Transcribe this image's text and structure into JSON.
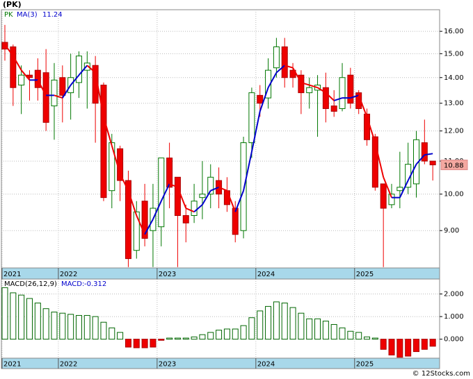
{
  "chart_data": [
    {
      "type": "candlestick",
      "title": "(PK)",
      "symbol": "PK",
      "log_scale": true,
      "grid": true,
      "categories": [
        "2021",
        null,
        null,
        null,
        null,
        null,
        null,
        "2022",
        null,
        null,
        null,
        null,
        null,
        null,
        null,
        null,
        null,
        null,
        null,
        "2023",
        null,
        null,
        null,
        null,
        null,
        null,
        null,
        null,
        null,
        null,
        null,
        "2024",
        null,
        null,
        null,
        null,
        null,
        null,
        null,
        null,
        null,
        null,
        null,
        "2025",
        null,
        null,
        null,
        null,
        null,
        null,
        null,
        null,
        null
      ],
      "open": [
        15.5,
        15.3,
        13.7,
        14.1,
        14.3,
        14.2,
        12.9,
        14.0,
        13.4,
        13.8,
        14.3,
        14.5,
        13.7,
        10.1,
        11.4,
        10.4,
        8.5,
        9.8,
        9.0,
        9.1,
        11.1,
        10.5,
        9.4,
        9.4,
        9.9,
        10.0,
        10.4,
        10.1,
        9.6,
        9.0,
        11.6,
        13.3,
        13.2,
        14.4,
        15.3,
        14.3,
        14.1,
        13.4,
        13.5,
        13.6,
        12.9,
        12.8,
        14.1,
        13.4,
        12.6,
        11.8,
        10.3,
        9.7,
        10.1,
        10.2,
        10.3,
        11.6,
        11.0
      ],
      "high": [
        16.3,
        15.4,
        14.5,
        14.3,
        14.8,
        15.2,
        14.6,
        14.5,
        15.0,
        15.1,
        15.1,
        14.9,
        13.8,
        11.9,
        11.5,
        10.7,
        9.8,
        10.3,
        10.3,
        11.1,
        11.6,
        10.5,
        9.7,
        10.3,
        11.0,
        10.9,
        10.8,
        10.5,
        9.8,
        11.8,
        13.6,
        13.7,
        14.8,
        15.7,
        15.7,
        14.6,
        14.3,
        14.0,
        14.1,
        14.2,
        13.5,
        14.6,
        14.4,
        13.5,
        12.8,
        11.9,
        10.3,
        10.3,
        11.3,
        11.6,
        12.0,
        12.4,
        11.0
      ],
      "low": [
        14.7,
        12.9,
        12.6,
        13.1,
        13.1,
        12.0,
        11.7,
        12.3,
        12.4,
        13.2,
        12.8,
        11.6,
        9.8,
        9.6,
        9.8,
        8.1,
        8.3,
        8.6,
        8.1,
        8.6,
        9.6,
        8.1,
        8.7,
        9.2,
        9.3,
        9.6,
        9.6,
        9.5,
        8.7,
        8.8,
        11.1,
        12.5,
        12.8,
        14.0,
        13.6,
        13.6,
        12.6,
        12.8,
        11.8,
        12.3,
        12.5,
        12.7,
        12.8,
        12.6,
        11.5,
        10.1,
        8.1,
        9.6,
        9.6,
        10.0,
        9.9,
        10.9,
        10.4
      ],
      "close": [
        15.2,
        13.6,
        14.1,
        14.0,
        13.6,
        12.3,
        13.9,
        13.3,
        14.0,
        14.9,
        14.6,
        13.0,
        9.9,
        11.6,
        10.4,
        8.3,
        9.5,
        8.8,
        9.6,
        11.1,
        10.2,
        9.4,
        9.2,
        9.8,
        10.0,
        10.5,
        10.0,
        9.7,
        8.9,
        11.6,
        13.4,
        13.0,
        14.3,
        15.3,
        14.0,
        14.0,
        13.4,
        13.6,
        13.7,
        12.8,
        12.7,
        14.0,
        13.0,
        12.8,
        11.7,
        10.2,
        9.6,
        10.0,
        10.2,
        10.9,
        11.7,
        11.0,
        10.88
      ],
      "ma": {
        "name": "MA(3)",
        "up_color": "#0000cc",
        "down_color": "#ee0000",
        "values": [
          15.4,
          14.9,
          14.3,
          13.9,
          13.9,
          13.3,
          13.3,
          13.2,
          13.7,
          14.1,
          14.5,
          14.2,
          12.5,
          11.5,
          10.6,
          10.1,
          9.4,
          8.9,
          9.3,
          9.8,
          10.3,
          10.2,
          9.6,
          9.5,
          9.7,
          10.1,
          10.2,
          10.1,
          9.5,
          10.1,
          11.3,
          12.7,
          13.6,
          14.2,
          14.5,
          14.4,
          13.8,
          13.7,
          13.6,
          13.4,
          13.1,
          13.2,
          13.2,
          13.3,
          12.5,
          11.6,
          10.5,
          9.9,
          9.9,
          10.4,
          10.9,
          11.2,
          11.24
        ]
      },
      "up_color": "#007700",
      "down_color": "#ee0000",
      "ylim": [
        8.08,
        17.03
      ],
      "yticks": [
        {
          "value": 9,
          "label": "9.00"
        },
        {
          "value": 10,
          "label": "10.00"
        },
        {
          "value": 11,
          "label": "11.00"
        },
        {
          "value": 12,
          "label": "12.00"
        },
        {
          "value": 13,
          "label": "13.00"
        },
        {
          "value": 14,
          "label": "14.00"
        },
        {
          "value": 15,
          "label": "15.00"
        },
        {
          "value": 16,
          "label": "16.00"
        }
      ]
    },
    {
      "type": "bar",
      "title": "MACD(26,12,9)",
      "value_name": "MACD:",
      "grid": true,
      "categories": [
        "2021",
        null,
        null,
        null,
        null,
        null,
        null,
        "2022",
        null,
        null,
        null,
        null,
        null,
        null,
        null,
        null,
        null,
        null,
        null,
        "2023",
        null,
        null,
        null,
        null,
        null,
        null,
        null,
        null,
        null,
        null,
        null,
        "2024",
        null,
        null,
        null,
        null,
        null,
        null,
        null,
        null,
        null,
        null,
        null,
        "2025",
        null,
        null,
        null,
        null,
        null,
        null,
        null,
        null,
        null
      ],
      "values": [
        2.28,
        2.05,
        1.95,
        1.8,
        1.6,
        1.35,
        1.2,
        1.15,
        1.1,
        1.05,
        1.05,
        1.0,
        0.75,
        0.5,
        0.3,
        -0.35,
        -0.38,
        -0.38,
        -0.35,
        -0.05,
        0.05,
        0.05,
        0.05,
        0.1,
        0.2,
        0.3,
        0.4,
        0.45,
        0.45,
        0.6,
        0.95,
        1.25,
        1.45,
        1.65,
        1.6,
        1.4,
        1.15,
        0.9,
        0.9,
        0.8,
        0.65,
        0.5,
        0.35,
        0.3,
        0.1,
        0.05,
        -0.45,
        -0.7,
        -0.8,
        -0.75,
        -0.55,
        -0.45,
        -0.312
      ],
      "up_color": "#006600",
      "down_color": "#ee0000",
      "ylim": [
        -0.84,
        2.66
      ],
      "yticks": [
        {
          "value": 0,
          "label": "0.000"
        },
        {
          "value": 1,
          "label": "1.000"
        },
        {
          "value": 2,
          "label": "2.000"
        }
      ]
    }
  ],
  "footer": "© 12Stocks.com"
}
